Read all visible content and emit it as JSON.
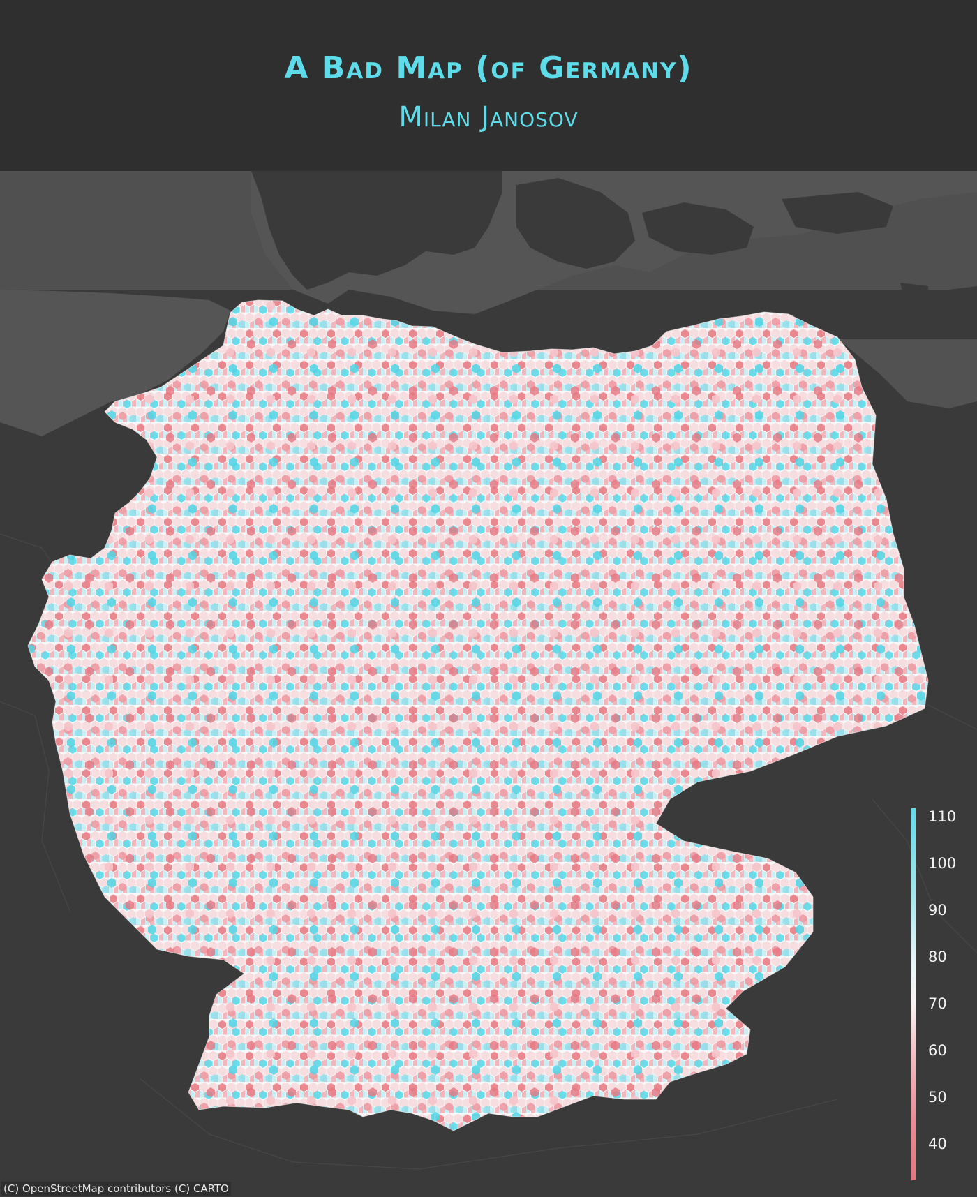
{
  "title": "A Bad Map (of Germany)",
  "subtitle": "Milan Janosov",
  "colorbar": {
    "ticks": [
      "110",
      "100",
      "90",
      "80",
      "70",
      "60",
      "50",
      "40"
    ],
    "range": [
      33,
      112
    ],
    "high_color": "#5fdcea",
    "mid_color": "#f5f5f5",
    "low_color": "#e6767f"
  },
  "attribution": "(C) OpenStreetMap contributors (C) CARTO",
  "colors": {
    "background": "#333333",
    "header_background": "#2f2f2f",
    "land": "#3a3a3a",
    "water": "#505050",
    "accent": "#5fdcea"
  }
}
